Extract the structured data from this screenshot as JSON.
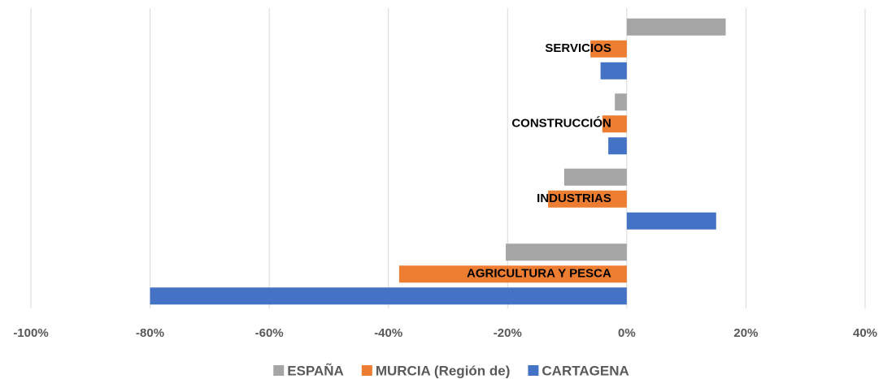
{
  "chart_data": {
    "type": "hbar",
    "categories": [
      "SERVICIOS",
      "CONSTRUCCIÓN",
      "INDUSTRIAS",
      "AGRICULTURA Y PESCA"
    ],
    "series": [
      {
        "name": "ESPAÑA",
        "color": "#a5a5a5",
        "values": [
          16.6,
          -2,
          -10.5,
          -20.3
        ]
      },
      {
        "name": "MURCIA (Región de)",
        "color": "#ed7d31",
        "values": [
          -6.1,
          -4.1,
          -13.2,
          -38.2
        ]
      },
      {
        "name": "CARTAGENA",
        "color": "#4472c4",
        "values": [
          -4.4,
          -3.1,
          15,
          -80
        ]
      }
    ],
    "xlim": [
      -100,
      40
    ],
    "xticks": [
      {
        "value": -100,
        "label": "-100%"
      },
      {
        "value": -80,
        "label": "-80%"
      },
      {
        "value": -60,
        "label": "-60%"
      },
      {
        "value": -40,
        "label": "-40%"
      },
      {
        "value": -20,
        "label": "-20%"
      },
      {
        "value": 0,
        "label": "0%"
      },
      {
        "value": 20,
        "label": "20%"
      },
      {
        "value": 40,
        "label": "40%"
      }
    ],
    "grid": true,
    "legend": "bottom"
  }
}
